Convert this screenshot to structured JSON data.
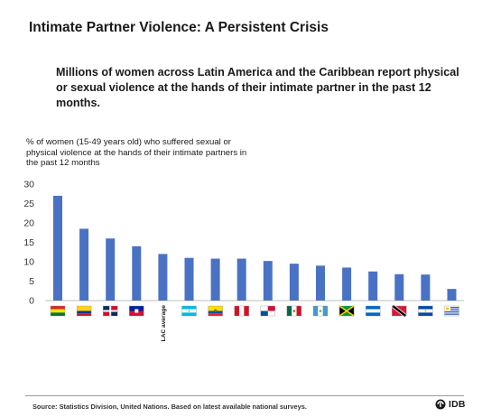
{
  "title": "Intimate Partner Violence: A Persistent Crisis",
  "subtitle": "Millions of women across Latin America and the Caribbean report physical or sexual violence at the hands of their intimate partner in the past 12 months.",
  "source": "Source: Statistics Division, United Nations. Based on latest available national surveys.",
  "logo_text": "IDB",
  "chart_data": {
    "type": "bar",
    "ylabel": "% of women (15-49 years old) who suffered sexual or physical violence at the hands of their intimate partners in  the past 12 months",
    "ylim": [
      0,
      30
    ],
    "yticks": [
      0,
      5,
      10,
      15,
      20,
      25,
      30
    ],
    "bar_color": "#4a72c4",
    "grid": false,
    "categories": [
      "bolivia-flag",
      "colombia-flag",
      "dominican-republic-flag",
      "haiti-flag",
      "LAC average",
      "honduras-flag",
      "ecuador-flag",
      "peru-flag",
      "panama-flag",
      "mexico-flag",
      "guatemala-flag",
      "jamaica-flag",
      "nicaragua-flag",
      "trinidad-and-tobago-flag",
      "el-salvador-flag",
      "uruguay-flag"
    ],
    "values": [
      27,
      18.5,
      16,
      14,
      12,
      11,
      10.8,
      10.8,
      10.2,
      9.5,
      9,
      8.5,
      7.5,
      6.8,
      6.7,
      3
    ]
  }
}
